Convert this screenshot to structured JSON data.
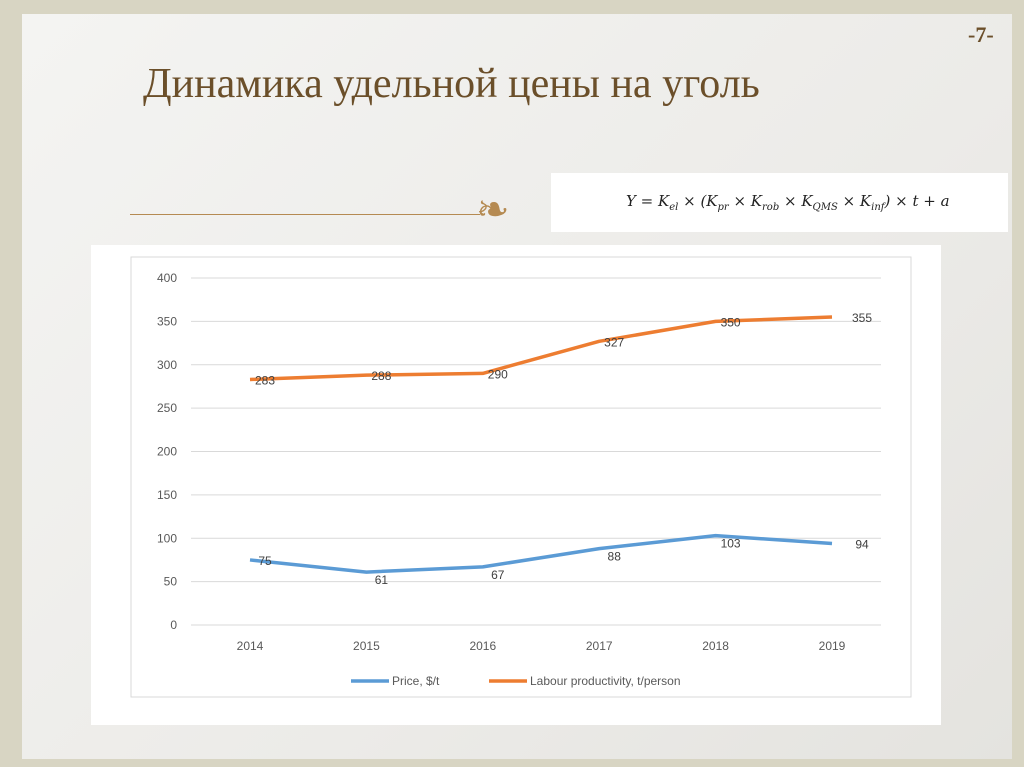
{
  "slide": {
    "page_number": "-7-",
    "title": "Динамика удельной цены на уголь"
  },
  "formula": {
    "text": "Y = K_el × (K_pr × K_rob × K_QMS × K_inf) × t + a"
  },
  "chart_data": {
    "type": "line",
    "title": "",
    "xlabel": "",
    "ylabel": "",
    "x": [
      "2014",
      "2015",
      "2016",
      "2017",
      "2018",
      "2019"
    ],
    "ylim": [
      0,
      400
    ],
    "yticks": [
      0,
      50,
      100,
      150,
      200,
      250,
      300,
      350,
      400
    ],
    "grid": true,
    "legend": "bottom",
    "series": [
      {
        "name": "Price, $/t",
        "values": [
          75,
          61,
          67,
          88,
          103,
          94
        ],
        "color": "#5b9bd5"
      },
      {
        "name": "Labour productivity, t/person",
        "values": [
          283,
          288,
          290,
          327,
          350,
          355
        ],
        "color": "#ed7d31"
      }
    ]
  }
}
